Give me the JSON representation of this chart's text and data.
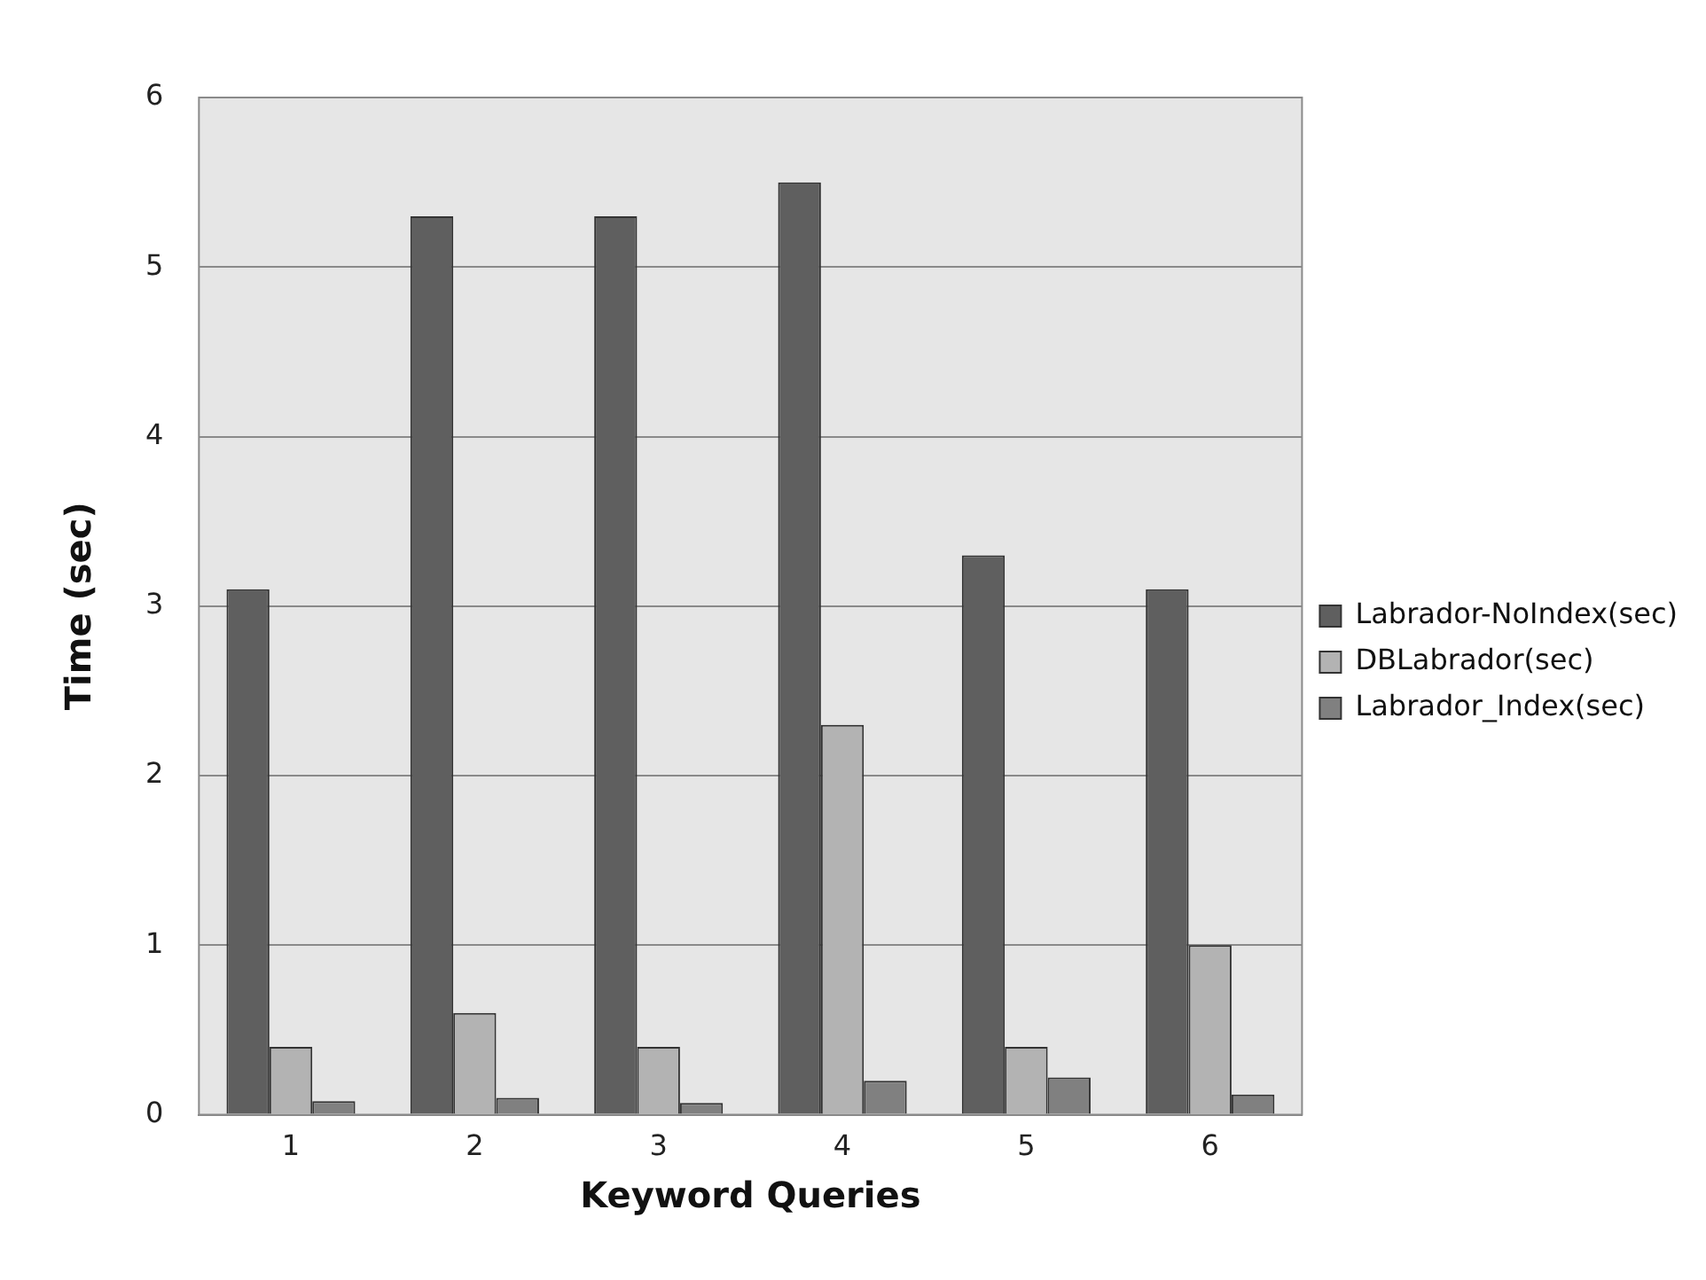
{
  "chart_data": {
    "type": "bar",
    "xlabel": "Keyword Queries",
    "ylabel": "Time (sec)",
    "categories": [
      "1",
      "2",
      "3",
      "4",
      "5",
      "6"
    ],
    "series": [
      {
        "name": "Labrador-NoIndex(sec)",
        "color": "#5f5f5f",
        "values": [
          3.1,
          5.3,
          5.3,
          5.5,
          3.3,
          3.1
        ]
      },
      {
        "name": "DBLabrador(sec)",
        "color": "#b3b3b3",
        "values": [
          0.4,
          0.6,
          0.4,
          2.3,
          0.4,
          1.0
        ]
      },
      {
        "name": "Labrador_Index(sec)",
        "color": "#808080",
        "values": [
          0.08,
          0.1,
          0.07,
          0.2,
          0.22,
          0.12
        ]
      }
    ],
    "ylim": [
      0,
      6
    ],
    "yticks": [
      0,
      1,
      2,
      3,
      4,
      5,
      6
    ],
    "grid": "y",
    "legend": "right"
  }
}
